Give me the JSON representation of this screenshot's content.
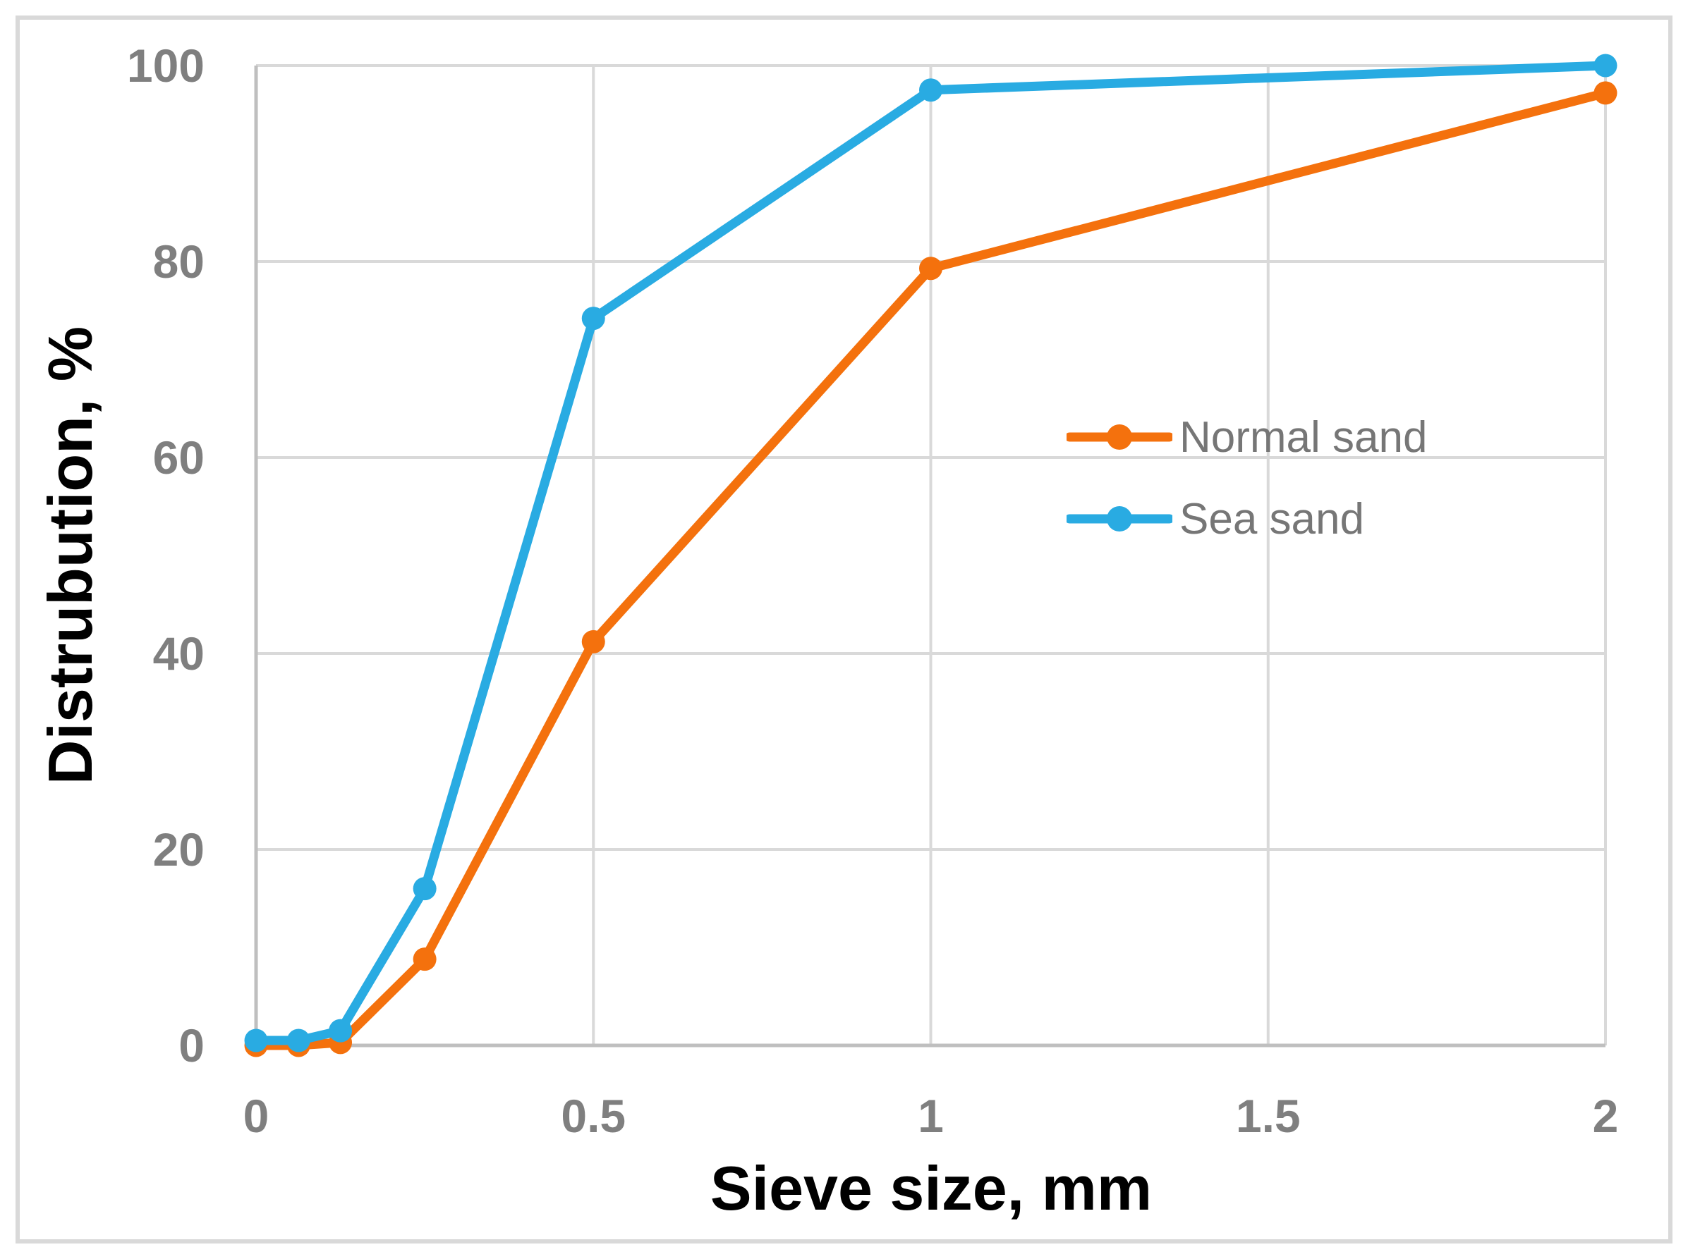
{
  "chart_data": {
    "type": "line",
    "title": "",
    "xlabel": "Sieve size, mm",
    "ylabel": "Distrubution, %",
    "x": [
      0,
      0.063,
      0.125,
      0.25,
      0.5,
      1,
      2
    ],
    "series": [
      {
        "name": "Normal sand",
        "color": "#F4710D",
        "values": [
          0,
          0,
          0.3,
          8.8,
          41.2,
          79.3,
          97.2
        ]
      },
      {
        "name": "Sea sand",
        "color": "#29ABE2",
        "values": [
          0.5,
          0.5,
          1.5,
          16,
          74.2,
          97.5,
          100
        ]
      }
    ],
    "xlim": [
      0,
      2
    ],
    "ylim": [
      0,
      100
    ],
    "x_ticks": [
      0,
      0.5,
      1,
      1.5,
      2
    ],
    "x_tick_labels": [
      "0",
      "0.5",
      "1",
      "1.5",
      "2"
    ],
    "y_ticks": [
      0,
      20,
      40,
      60,
      80,
      100
    ],
    "y_tick_labels": [
      "0",
      "20",
      "40",
      "60",
      "80",
      "100"
    ],
    "grid": true,
    "legend_position": "inside-right",
    "marker": "circle"
  },
  "colors": {
    "gridline": "#D9D9D9",
    "axis_line": "#BFBFBF",
    "frame": "#D9D9D9",
    "tick_text": "#7F7F7F",
    "title_text": "#000000",
    "legend_text": "#767676",
    "background": "#FFFFFF"
  }
}
